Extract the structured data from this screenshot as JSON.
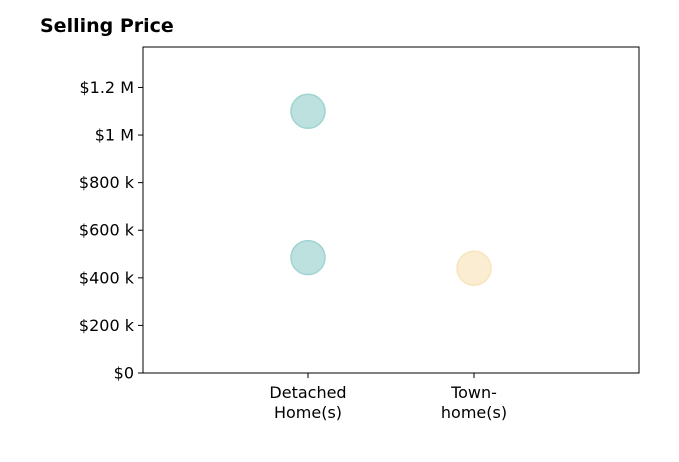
{
  "chart_data": {
    "type": "scatter",
    "title": "Selling Price",
    "xlabel": "",
    "ylabel": "",
    "categories": [
      [
        "Detached",
        "Home(s)"
      ],
      [
        "Town-",
        "home(s)"
      ]
    ],
    "ylim": [
      0,
      1370000
    ],
    "yticks": [
      0,
      200000,
      400000,
      600000,
      800000,
      1000000,
      1200000
    ],
    "ytick_labels": [
      "$0",
      "$200 k",
      "$400 k",
      "$600 k",
      "$800 k",
      "$1 M",
      "$1.2 M"
    ],
    "grid": false,
    "series": [
      {
        "color": "#9fd4d0",
        "points": [
          {
            "category": 0,
            "y": 1100000
          },
          {
            "category": 0,
            "y": 485000
          }
        ]
      },
      {
        "color": "#f8e5bd",
        "points": [
          {
            "category": 1,
            "y": 440000
          }
        ]
      }
    ]
  }
}
